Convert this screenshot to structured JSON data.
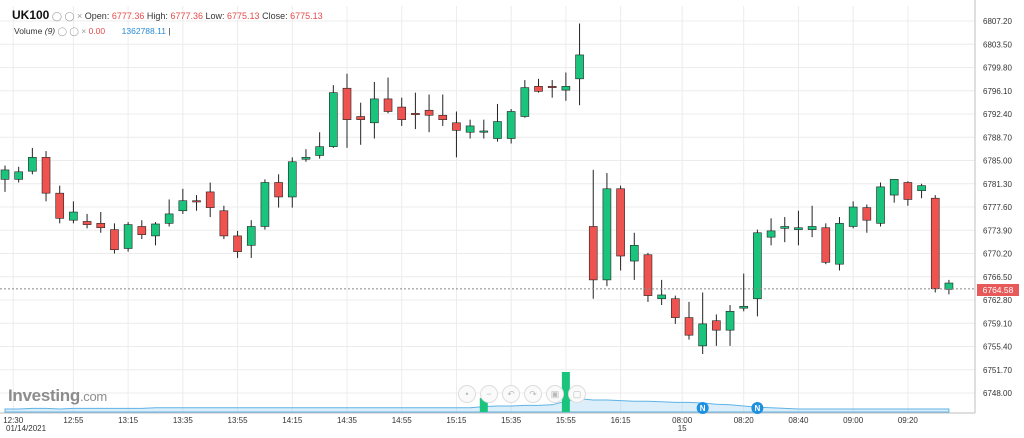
{
  "header": {
    "symbol": "UK100",
    "open_label": "Open:",
    "open": "6777.36",
    "high_label": "High:",
    "high": "6777.36",
    "low_label": "Low:",
    "low": "6775.13",
    "close_label": "Close:",
    "close": "6775.13",
    "volume_label": "Volume",
    "volume_period": "(9)",
    "volume_value": "0.00",
    "volume_ma": "1362788.11"
  },
  "logo": {
    "brand": "Investing",
    "suffix": ".com"
  },
  "date_label": "01/14/2021",
  "last_price_label": "6764.58",
  "colors": {
    "up": "#1bc47d",
    "down": "#ef5350",
    "grid": "#ececec",
    "volume_area": "#9ccfee"
  },
  "icons": [
    "settings-circle-icon",
    "zoom-out-icon",
    "undo-icon",
    "redo-icon",
    "screenshot-icon",
    "fullscreen-icon"
  ],
  "chart_data": {
    "type": "candlestick",
    "title": "UK100",
    "grid": true,
    "ylim": [
      6745.2,
      6809.0
    ],
    "y_ticks": [
      "6807.20",
      "6803.50",
      "6799.80",
      "6796.10",
      "6792.40",
      "6788.70",
      "6785.00",
      "6781.30",
      "6777.60",
      "6773.90",
      "6770.20",
      "6766.50",
      "6762.80",
      "6759.10",
      "6755.40",
      "6751.70",
      "6748.00"
    ],
    "x_tick_labels": [
      "12:30",
      "12:55",
      "13:15",
      "13:35",
      "13:55",
      "14:15",
      "14:35",
      "14:55",
      "15:15",
      "15:35",
      "15:55",
      "16:15",
      "08:00",
      "08:20",
      "08:40",
      "09:00",
      "09:20"
    ],
    "x_tick_sublabels": {
      "08:00": "15"
    },
    "last_price": 6764.58,
    "candles": [
      {
        "o": 6782.0,
        "h": 6784.2,
        "l": 6780.0,
        "c": 6783.5
      },
      {
        "o": 6782.0,
        "h": 6784.0,
        "l": 6781.5,
        "c": 6783.2
      },
      {
        "o": 6783.3,
        "h": 6787.0,
        "l": 6782.8,
        "c": 6785.5
      },
      {
        "o": 6785.5,
        "h": 6786.5,
        "l": 6778.5,
        "c": 6779.8
      },
      {
        "o": 6779.8,
        "h": 6781.0,
        "l": 6775.0,
        "c": 6775.8
      },
      {
        "o": 6775.5,
        "h": 6778.5,
        "l": 6775.0,
        "c": 6776.8
      },
      {
        "o": 6775.3,
        "h": 6776.5,
        "l": 6774.2,
        "c": 6774.8
      },
      {
        "o": 6775.0,
        "h": 6776.8,
        "l": 6773.5,
        "c": 6774.3
      },
      {
        "o": 6774.0,
        "h": 6775.0,
        "l": 6770.2,
        "c": 6770.8
      },
      {
        "o": 6771.0,
        "h": 6775.2,
        "l": 6770.5,
        "c": 6774.8
      },
      {
        "o": 6774.5,
        "h": 6775.5,
        "l": 6772.5,
        "c": 6773.2
      },
      {
        "o": 6773.0,
        "h": 6775.2,
        "l": 6771.5,
        "c": 6774.9
      },
      {
        "o": 6775.0,
        "h": 6778.8,
        "l": 6774.5,
        "c": 6776.5
      },
      {
        "o": 6777.0,
        "h": 6780.5,
        "l": 6776.5,
        "c": 6778.6
      },
      {
        "o": 6778.6,
        "h": 6779.5,
        "l": 6777.0,
        "c": 6778.4
      },
      {
        "o": 6780.0,
        "h": 6781.5,
        "l": 6776.0,
        "c": 6777.5
      },
      {
        "o": 6777.0,
        "h": 6777.8,
        "l": 6772.5,
        "c": 6773.0
      },
      {
        "o": 6773.0,
        "h": 6773.8,
        "l": 6769.5,
        "c": 6770.5
      },
      {
        "o": 6771.5,
        "h": 6775.5,
        "l": 6769.5,
        "c": 6774.5
      },
      {
        "o": 6774.5,
        "h": 6782.0,
        "l": 6774.0,
        "c": 6781.5
      },
      {
        "o": 6781.5,
        "h": 6782.8,
        "l": 6777.5,
        "c": 6779.2
      },
      {
        "o": 6779.2,
        "h": 6785.5,
        "l": 6777.5,
        "c": 6784.8
      },
      {
        "o": 6785.2,
        "h": 6786.8,
        "l": 6784.8,
        "c": 6785.5
      },
      {
        "o": 6785.8,
        "h": 6789.5,
        "l": 6785.3,
        "c": 6787.2
      },
      {
        "o": 6787.2,
        "h": 6797.0,
        "l": 6787.0,
        "c": 6795.8
      },
      {
        "o": 6796.5,
        "h": 6798.8,
        "l": 6787.0,
        "c": 6791.5
      },
      {
        "o": 6792.0,
        "h": 6794.2,
        "l": 6787.5,
        "c": 6791.5
      },
      {
        "o": 6791.0,
        "h": 6797.5,
        "l": 6788.5,
        "c": 6794.8
      },
      {
        "o": 6794.8,
        "h": 6798.2,
        "l": 6792.5,
        "c": 6792.8
      },
      {
        "o": 6793.5,
        "h": 6795.0,
        "l": 6790.5,
        "c": 6791.5
      },
      {
        "o": 6792.5,
        "h": 6795.8,
        "l": 6790.0,
        "c": 6792.3
      },
      {
        "o": 6793.0,
        "h": 6795.5,
        "l": 6789.5,
        "c": 6792.2
      },
      {
        "o": 6792.2,
        "h": 6795.5,
        "l": 6790.5,
        "c": 6791.5
      },
      {
        "o": 6791.0,
        "h": 6792.8,
        "l": 6785.5,
        "c": 6789.8
      },
      {
        "o": 6789.5,
        "h": 6791.5,
        "l": 6788.5,
        "c": 6790.5
      },
      {
        "o": 6789.5,
        "h": 6791.5,
        "l": 6788.5,
        "c": 6789.7
      },
      {
        "o": 6788.5,
        "h": 6794.0,
        "l": 6788.0,
        "c": 6791.2
      },
      {
        "o": 6788.5,
        "h": 6793.2,
        "l": 6787.7,
        "c": 6792.8
      },
      {
        "o": 6792.0,
        "h": 6797.8,
        "l": 6791.8,
        "c": 6796.6
      },
      {
        "o": 6796.8,
        "h": 6798.0,
        "l": 6795.8,
        "c": 6796.0
      },
      {
        "o": 6796.8,
        "h": 6797.8,
        "l": 6795.0,
        "c": 6796.6
      },
      {
        "o": 6796.2,
        "h": 6799.0,
        "l": 6794.5,
        "c": 6796.8
      },
      {
        "o": 6798.0,
        "h": 6806.8,
        "l": 6793.8,
        "c": 6801.8
      },
      {
        "o": 6774.5,
        "h": 6783.5,
        "l": 6763.0,
        "c": 6766.0
      },
      {
        "o": 6766.0,
        "h": 6783.0,
        "l": 6765.0,
        "c": 6780.5
      },
      {
        "o": 6780.5,
        "h": 6781.0,
        "l": 6767.5,
        "c": 6769.8
      },
      {
        "o": 6769.0,
        "h": 6773.5,
        "l": 6766.0,
        "c": 6771.5
      },
      {
        "o": 6770.0,
        "h": 6770.3,
        "l": 6762.5,
        "c": 6763.5
      },
      {
        "o": 6763.0,
        "h": 6766.0,
        "l": 6762.0,
        "c": 6763.6
      },
      {
        "o": 6763.0,
        "h": 6763.5,
        "l": 6759.0,
        "c": 6760.0
      },
      {
        "o": 6760.0,
        "h": 6762.5,
        "l": 6756.5,
        "c": 6757.2
      },
      {
        "o": 6755.5,
        "h": 6764.0,
        "l": 6754.2,
        "c": 6759.0
      },
      {
        "o": 6759.5,
        "h": 6760.5,
        "l": 6755.5,
        "c": 6758.0
      },
      {
        "o": 6758.0,
        "h": 6762.0,
        "l": 6755.5,
        "c": 6761.0
      },
      {
        "o": 6761.5,
        "h": 6767.0,
        "l": 6761.0,
        "c": 6761.8
      },
      {
        "o": 6763.0,
        "h": 6774.0,
        "l": 6760.2,
        "c": 6773.5
      },
      {
        "o": 6772.8,
        "h": 6775.8,
        "l": 6771.5,
        "c": 6773.8
      },
      {
        "o": 6774.2,
        "h": 6776.0,
        "l": 6772.0,
        "c": 6774.5
      },
      {
        "o": 6774.0,
        "h": 6777.0,
        "l": 6771.5,
        "c": 6774.3
      },
      {
        "o": 6774.0,
        "h": 6777.8,
        "l": 6772.8,
        "c": 6774.5
      },
      {
        "o": 6774.3,
        "h": 6775.0,
        "l": 6768.5,
        "c": 6768.8
      },
      {
        "o": 6768.5,
        "h": 6776.0,
        "l": 6767.5,
        "c": 6775.0
      },
      {
        "o": 6774.5,
        "h": 6778.5,
        "l": 6774.2,
        "c": 6777.6
      },
      {
        "o": 6777.5,
        "h": 6778.0,
        "l": 6773.5,
        "c": 6775.5
      },
      {
        "o": 6775.0,
        "h": 6781.5,
        "l": 6774.5,
        "c": 6780.8
      },
      {
        "o": 6779.5,
        "h": 6781.8,
        "l": 6778.3,
        "c": 6782.0
      },
      {
        "o": 6781.5,
        "h": 6781.7,
        "l": 6777.8,
        "c": 6778.8
      },
      {
        "o": 6780.2,
        "h": 6781.3,
        "l": 6779.0,
        "c": 6781.0
      },
      {
        "o": 6779.0,
        "h": 6779.5,
        "l": 6764.0,
        "c": 6764.6
      },
      {
        "o": 6764.5,
        "h": 6766.0,
        "l": 6763.7,
        "c": 6765.5
      }
    ],
    "volume": [
      0,
      0,
      0,
      0,
      0,
      0,
      0,
      0,
      0,
      0,
      0,
      0,
      0,
      0,
      0,
      0,
      0,
      0,
      0,
      0,
      0,
      0,
      0,
      0,
      0,
      0,
      0,
      0,
      0,
      0,
      0,
      0,
      0,
      0,
      0,
      0.35,
      0,
      0,
      0,
      0,
      0,
      1.0,
      0,
      0,
      0,
      0,
      0,
      0,
      0,
      0,
      0,
      0,
      0,
      0,
      0,
      0,
      0,
      0,
      0,
      0,
      0,
      0,
      0,
      0,
      0,
      0,
      0,
      0,
      0,
      0
    ],
    "volume_area": [
      0.05,
      0.05,
      0.06,
      0.06,
      0.05,
      0.06,
      0.06,
      0.06,
      0.06,
      0.06,
      0.06,
      0.07,
      0.07,
      0.07,
      0.07,
      0.07,
      0.07,
      0.07,
      0.07,
      0.07,
      0.07,
      0.07,
      0.07,
      0.07,
      0.07,
      0.07,
      0.07,
      0.07,
      0.07,
      0.07,
      0.07,
      0.07,
      0.07,
      0.07,
      0.07,
      0.09,
      0.1,
      0.1,
      0.11,
      0.11,
      0.12,
      0.18,
      0.22,
      0.2,
      0.2,
      0.19,
      0.18,
      0.18,
      0.17,
      0.16,
      0.16,
      0.15,
      0.13,
      0.12,
      0.1,
      0.08,
      0.07,
      0.06,
      0.05,
      0.05,
      0.05,
      0.05,
      0.05,
      0.05,
      0.05,
      0.05,
      0.05,
      0.05,
      0.05,
      0.05
    ],
    "markers": [
      {
        "label": "N",
        "index": 51
      },
      {
        "label": "N",
        "index": 55
      }
    ]
  }
}
